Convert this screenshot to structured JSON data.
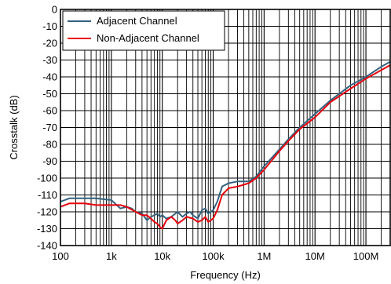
{
  "chart_data": {
    "type": "line",
    "title": "",
    "xlabel": "Frequency (Hz)",
    "ylabel": "Crosstalk (dB)",
    "x_scale": "log",
    "xlim": [
      100,
      300000000
    ],
    "ylim": [
      -140,
      0
    ],
    "grid": true,
    "legend_position": "top-left",
    "x_ticks": [
      {
        "value": 100,
        "label": "100"
      },
      {
        "value": 1000,
        "label": "1k"
      },
      {
        "value": 10000,
        "label": "10k"
      },
      {
        "value": 100000,
        "label": "100k"
      },
      {
        "value": 1000000,
        "label": "1M"
      },
      {
        "value": 10000000,
        "label": "10M"
      },
      {
        "value": 100000000,
        "label": "100M"
      }
    ],
    "y_ticks": [
      {
        "value": 0,
        "label": "0"
      },
      {
        "value": -10,
        "label": "-10"
      },
      {
        "value": -20,
        "label": "-20"
      },
      {
        "value": -30,
        "label": "-30"
      },
      {
        "value": -40,
        "label": "-40"
      },
      {
        "value": -50,
        "label": "-50"
      },
      {
        "value": -60,
        "label": "-60"
      },
      {
        "value": -70,
        "label": "-70"
      },
      {
        "value": -80,
        "label": "-80"
      },
      {
        "value": -90,
        "label": "-90"
      },
      {
        "value": -100,
        "label": "-100"
      },
      {
        "value": -110,
        "label": "-110"
      },
      {
        "value": -120,
        "label": "-120"
      },
      {
        "value": -130,
        "label": "-130"
      },
      {
        "value": -140,
        "label": "-140"
      }
    ],
    "series": [
      {
        "name": "Adjacent Channel",
        "color": "#33627e",
        "points": [
          [
            100,
            -114
          ],
          [
            150,
            -112
          ],
          [
            250,
            -112
          ],
          [
            500,
            -112
          ],
          [
            1000,
            -113
          ],
          [
            1500,
            -118
          ],
          [
            2000,
            -117
          ],
          [
            2500,
            -118
          ],
          [
            3000,
            -120
          ],
          [
            4000,
            -121
          ],
          [
            5000,
            -125
          ],
          [
            6000,
            -123
          ],
          [
            7000,
            -122
          ],
          [
            8000,
            -121
          ],
          [
            9000,
            -123
          ],
          [
            10000,
            -122
          ],
          [
            12000,
            -124
          ],
          [
            15000,
            -123
          ],
          [
            20000,
            -120
          ],
          [
            25000,
            -123
          ],
          [
            30000,
            -121
          ],
          [
            35000,
            -120
          ],
          [
            40000,
            -122
          ],
          [
            50000,
            -124
          ],
          [
            60000,
            -119
          ],
          [
            70000,
            -118
          ],
          [
            80000,
            -121
          ],
          [
            100000,
            -119
          ],
          [
            120000,
            -114
          ],
          [
            150000,
            -105
          ],
          [
            200000,
            -103
          ],
          [
            300000,
            -102
          ],
          [
            500000,
            -102
          ],
          [
            700000,
            -99
          ],
          [
            1000000,
            -93
          ],
          [
            2000000,
            -83
          ],
          [
            3000000,
            -77
          ],
          [
            5000000,
            -70
          ],
          [
            10000000,
            -62
          ],
          [
            20000000,
            -54
          ],
          [
            50000000,
            -45
          ],
          [
            100000000,
            -40
          ],
          [
            200000000,
            -34
          ],
          [
            300000000,
            -31
          ]
        ]
      },
      {
        "name": "Non-Adjacent Channel",
        "color": "#e8000b",
        "points": [
          [
            100,
            -117
          ],
          [
            150,
            -115
          ],
          [
            300,
            -115
          ],
          [
            500,
            -116
          ],
          [
            1000,
            -116
          ],
          [
            1500,
            -116
          ],
          [
            2000,
            -117
          ],
          [
            3000,
            -120
          ],
          [
            4000,
            -122
          ],
          [
            5000,
            -122
          ],
          [
            6000,
            -124
          ],
          [
            7000,
            -126
          ],
          [
            8000,
            -127
          ],
          [
            9000,
            -129
          ],
          [
            10000,
            -130
          ],
          [
            12000,
            -125
          ],
          [
            15000,
            -123
          ],
          [
            18000,
            -125
          ],
          [
            20000,
            -127
          ],
          [
            25000,
            -125
          ],
          [
            30000,
            -123
          ],
          [
            40000,
            -124
          ],
          [
            50000,
            -126
          ],
          [
            60000,
            -125
          ],
          [
            70000,
            -123
          ],
          [
            80000,
            -126
          ],
          [
            100000,
            -124
          ],
          [
            120000,
            -119
          ],
          [
            150000,
            -110
          ],
          [
            200000,
            -106
          ],
          [
            300000,
            -105
          ],
          [
            500000,
            -103
          ],
          [
            700000,
            -100
          ],
          [
            1000000,
            -95
          ],
          [
            2000000,
            -84
          ],
          [
            3000000,
            -78
          ],
          [
            5000000,
            -71
          ],
          [
            10000000,
            -64
          ],
          [
            20000000,
            -55
          ],
          [
            50000000,
            -47
          ],
          [
            100000000,
            -41
          ],
          [
            200000000,
            -36
          ],
          [
            300000000,
            -33
          ]
        ]
      }
    ]
  }
}
